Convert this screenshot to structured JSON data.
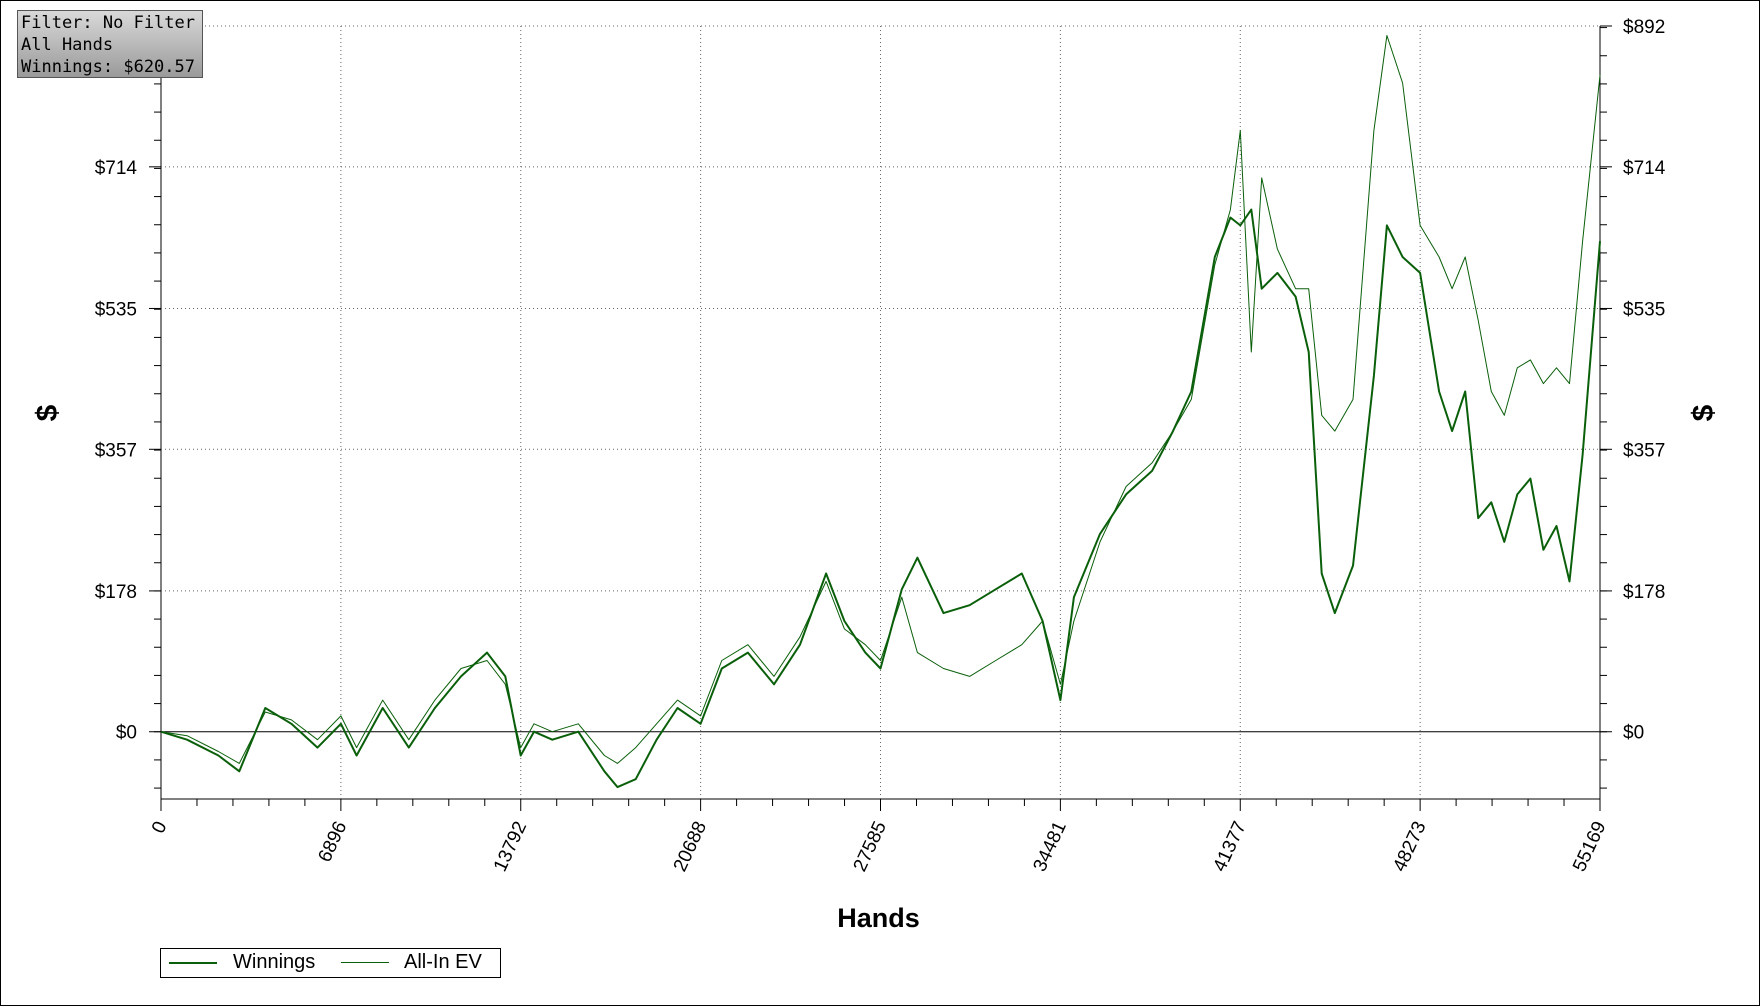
{
  "info": {
    "filter": "Filter: No Filter",
    "hands": "All Hands",
    "winnings": "Winnings: $620.57"
  },
  "colors": {
    "line": "#0a5f0a",
    "grid": "#666666",
    "background": "#ffffff"
  },
  "chart_data": {
    "type": "line",
    "xlabel": "Hands",
    "ylabel_left": "$",
    "ylabel_right": "$",
    "x_ticks": [
      "0",
      "6896",
      "13792",
      "20688",
      "27585",
      "34481",
      "41377",
      "48273",
      "55169"
    ],
    "y_ticks": [
      "$0",
      "$178",
      "$357",
      "$535",
      "$714",
      "$892"
    ],
    "y_tick_values": [
      0,
      178,
      357,
      535,
      714,
      892
    ],
    "xlim": [
      0,
      55169
    ],
    "ylim": [
      -85,
      892
    ],
    "grid": true,
    "legend_position": "bottom-left",
    "series": [
      {
        "name": "Winnings",
        "x": [
          0,
          1000,
          2200,
          3000,
          4000,
          5000,
          6000,
          6896,
          7500,
          8500,
          9500,
          10500,
          11500,
          12500,
          13200,
          13792,
          14300,
          15000,
          16000,
          17000,
          17500,
          18200,
          19000,
          19800,
          20688,
          21500,
          22500,
          23500,
          24500,
          25500,
          26200,
          27000,
          27585,
          28400,
          29000,
          30000,
          31000,
          32000,
          33000,
          33800,
          34481,
          35000,
          36000,
          37000,
          38000,
          38800,
          39500,
          40400,
          41000,
          41377,
          41800,
          42200,
          42800,
          43500,
          44000,
          44500,
          45000,
          45700,
          46500,
          47000,
          47600,
          48273,
          49000,
          49500,
          50000,
          50500,
          51000,
          51500,
          52000,
          52500,
          53000,
          53500,
          54000,
          54500,
          55169
        ],
        "y": [
          0,
          -10,
          -30,
          -50,
          30,
          10,
          -20,
          10,
          -30,
          30,
          -20,
          30,
          70,
          100,
          70,
          -30,
          0,
          -10,
          0,
          -50,
          -70,
          -60,
          -10,
          30,
          10,
          80,
          100,
          60,
          110,
          200,
          140,
          100,
          80,
          180,
          220,
          150,
          160,
          180,
          200,
          140,
          40,
          170,
          250,
          300,
          330,
          380,
          430,
          600,
          650,
          640,
          660,
          560,
          580,
          550,
          480,
          200,
          150,
          210,
          450,
          640,
          600,
          580,
          430,
          380,
          430,
          270,
          290,
          240,
          300,
          320,
          230,
          260,
          190,
          350,
          620
        ]
      },
      {
        "name": "All-In EV",
        "x": [
          0,
          1000,
          2200,
          3000,
          4000,
          5000,
          6000,
          6896,
          7500,
          8500,
          9500,
          10500,
          11500,
          12500,
          13200,
          13792,
          14300,
          15000,
          16000,
          17000,
          17500,
          18200,
          19000,
          19800,
          20688,
          21500,
          22500,
          23500,
          24500,
          25500,
          26200,
          27000,
          27585,
          28400,
          29000,
          30000,
          31000,
          32000,
          33000,
          33800,
          34481,
          35000,
          36000,
          37000,
          38000,
          38800,
          39500,
          40400,
          41000,
          41377,
          41800,
          42200,
          42800,
          43500,
          44000,
          44500,
          45000,
          45700,
          46500,
          47000,
          47600,
          48273,
          49000,
          49500,
          50000,
          50500,
          51000,
          51500,
          52000,
          52500,
          53000,
          53500,
          54000,
          54500,
          55169
        ],
        "y": [
          0,
          -5,
          -25,
          -40,
          25,
          15,
          -10,
          20,
          -20,
          40,
          -10,
          40,
          80,
          90,
          60,
          -20,
          10,
          0,
          10,
          -30,
          -40,
          -20,
          10,
          40,
          20,
          90,
          110,
          70,
          120,
          190,
          130,
          110,
          90,
          170,
          100,
          80,
          70,
          90,
          110,
          140,
          60,
          140,
          240,
          310,
          340,
          380,
          420,
          590,
          660,
          760,
          480,
          700,
          610,
          560,
          560,
          400,
          380,
          420,
          760,
          880,
          820,
          640,
          600,
          560,
          600,
          520,
          430,
          400,
          460,
          470,
          440,
          460,
          440,
          620,
          830
        ]
      }
    ]
  },
  "legend": {
    "items": [
      "Winnings",
      "All-In EV"
    ]
  }
}
